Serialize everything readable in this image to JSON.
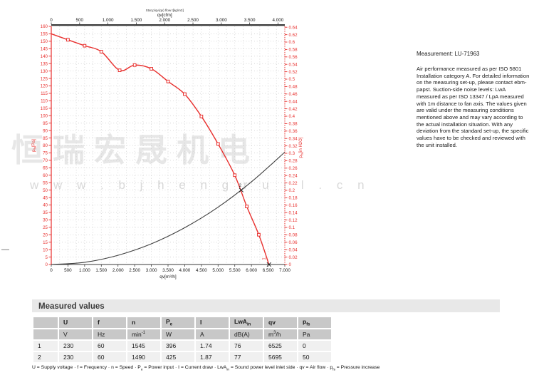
{
  "watermark": {
    "line1": "恒瑞宏晟机电",
    "line2": "w w w . b j h e n g r u i l . c n"
  },
  "side_note": {
    "title": "Measurement: LU-71963",
    "body": "Air performance measured as per ISO 5801 Installation category A. For detailed information on the measuring set-up, please contact ebm-papst. Suction-side noise levels: LwA measured as per ISO 13347 / LpA measured with 1m distance to fan axis. The values given are valid under the measuring conditions mentioned above and may vary according to the actual installation situation. With any deviation from the standard set-up, the specific values have to be checked and reviewed with the unit installed."
  },
  "chart_data": {
    "type": "line",
    "title_small": "Stat.p/qv(qv) flow t[kg/m3]",
    "top_axis": {
      "label": "qv[cfm]",
      "ticks": [
        0,
        500,
        1000,
        1500,
        2000,
        2500,
        3000,
        3500,
        4000
      ]
    },
    "bottom_axis": {
      "label": "qv[m³/h]",
      "ticks": [
        0,
        500,
        1000,
        1500,
        2000,
        2500,
        3000,
        3500,
        4000,
        4500,
        5000,
        5500,
        6000,
        6500,
        7000
      ]
    },
    "left_axis": {
      "label": "p~fs~[Pa]",
      "min": 0,
      "max": 160,
      "step": 5
    },
    "right_axis": {
      "label": "p~fs~[in H2O]",
      "min": 0,
      "max": 0.64,
      "step": 0.02
    },
    "conversions": {
      "cfm_to_m3h": 1.699,
      "inH2O_to_Pa": 249.089
    },
    "series": [
      {
        "name": "static-pressure-curve",
        "color": "#e8302e",
        "marker": "open-square",
        "points": [
          [
            0,
            155
          ],
          [
            500,
            151
          ],
          [
            1000,
            147
          ],
          [
            1500,
            143
          ],
          [
            2050,
            130.5
          ],
          [
            2500,
            134
          ],
          [
            3000,
            131.5
          ],
          [
            3500,
            123
          ],
          [
            4000,
            114.5
          ],
          [
            4500,
            99.5
          ],
          [
            5000,
            81
          ],
          [
            5500,
            60
          ],
          [
            5860,
            39
          ],
          [
            6220,
            20
          ],
          [
            6525,
            0
          ]
        ]
      },
      {
        "name": "system-resistance-curve",
        "color": "#3f3f3f",
        "marker": "none",
        "points": [
          [
            0,
            0
          ],
          [
            1000,
            1.5
          ],
          [
            2000,
            6.2
          ],
          [
            3000,
            13.9
          ],
          [
            4000,
            24.7
          ],
          [
            5000,
            38.5
          ],
          [
            6000,
            55.5
          ],
          [
            7000,
            75.5
          ]
        ]
      }
    ],
    "operating_points": [
      {
        "label": "2",
        "qv": 5695,
        "pfs": 50
      },
      {
        "label": "1",
        "qv": 6525,
        "pfs": 0
      }
    ]
  },
  "measured_values": {
    "section_title": "Measured values",
    "columns": [
      "",
      "U",
      "f",
      "n",
      "P~e~",
      "I",
      "LwA~in~",
      "qv",
      "p~fs~"
    ],
    "units": [
      "",
      "V",
      "Hz",
      "min^-1^",
      "W",
      "A",
      "dB(A)",
      "m^3^/h",
      "Pa"
    ],
    "rows": [
      [
        "1",
        "230",
        "60",
        "1545",
        "396",
        "1.74",
        "76",
        "6525",
        "0"
      ],
      [
        "2",
        "230",
        "60",
        "1490",
        "425",
        "1.87",
        "77",
        "5695",
        "50"
      ]
    ],
    "footnote": "U = Supply voltage · f = Frequency · n = Speed · P~e~ = Power input · I = Current draw · LwA~in~ = Sound power level inlet side · qv = Air flow · p~fs~ = Pressure increase"
  },
  "colors": {
    "accent_red": "#e8302e",
    "curve_black": "#3f3f3f",
    "grid": "#c4c4c4",
    "axis_dark": "#3a3a3a",
    "table_header_bg": "#c8c8c8",
    "table_row_bg": "#f0f0f0",
    "section_bg": "#e8e8e8"
  }
}
